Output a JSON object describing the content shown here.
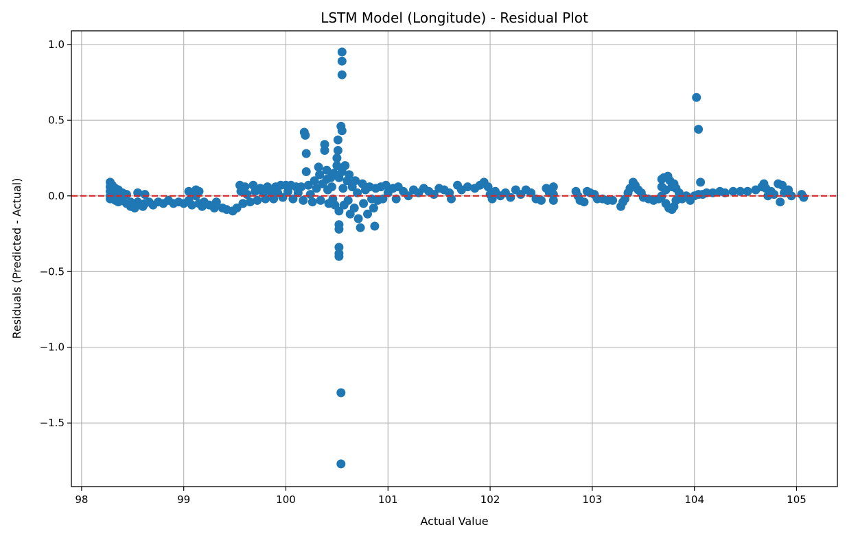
{
  "chart_data": {
    "type": "scatter",
    "title": "LSTM Model (Longitude) - Residual Plot",
    "xlabel": "Actual Value",
    "ylabel": "Residuals (Predicted - Actual)",
    "xlim": [
      97.9,
      105.4
    ],
    "ylim": [
      -1.92,
      1.09
    ],
    "xticks": [
      98,
      99,
      100,
      101,
      102,
      103,
      104,
      105
    ],
    "xtick_labels": [
      "98",
      "99",
      "100",
      "101",
      "102",
      "103",
      "104",
      "105"
    ],
    "yticks": [
      1.0,
      0.5,
      0.0,
      -0.5,
      -1.0,
      -1.5
    ],
    "ytick_labels": [
      "1.0",
      "0.5",
      "0.0",
      "−0.5",
      "−1.0",
      "−1.5"
    ],
    "grid": true,
    "reference_line": {
      "y": 0,
      "color": "#d62728",
      "style": "dashed"
    },
    "marker_color": "#1f77b4",
    "series": [
      {
        "name": "",
        "points": [
          [
            98.28,
            0.09
          ],
          [
            98.28,
            0.06
          ],
          [
            98.28,
            0.03
          ],
          [
            98.28,
            0.0
          ],
          [
            98.28,
            -0.02
          ],
          [
            98.3,
            0.07
          ],
          [
            98.3,
            0.02
          ],
          [
            98.3,
            -0.01
          ],
          [
            98.33,
            0.05
          ],
          [
            98.33,
            0.01
          ],
          [
            98.33,
            -0.03
          ],
          [
            98.36,
            0.04
          ],
          [
            98.36,
            0.0
          ],
          [
            98.36,
            -0.04
          ],
          [
            98.4,
            0.02
          ],
          [
            98.4,
            -0.03
          ],
          [
            98.44,
            0.01
          ],
          [
            98.44,
            -0.05
          ],
          [
            98.48,
            -0.04
          ],
          [
            98.48,
            -0.07
          ],
          [
            98.52,
            -0.06
          ],
          [
            98.52,
            -0.08
          ],
          [
            98.55,
            0.02
          ],
          [
            98.55,
            -0.04
          ],
          [
            98.6,
            -0.07
          ],
          [
            98.62,
            0.01
          ],
          [
            98.62,
            -0.05
          ],
          [
            98.66,
            -0.04
          ],
          [
            98.7,
            -0.06
          ],
          [
            98.75,
            -0.04
          ],
          [
            98.8,
            -0.05
          ],
          [
            98.85,
            -0.03
          ],
          [
            98.9,
            -0.05
          ],
          [
            98.95,
            -0.04
          ],
          [
            99.0,
            -0.05
          ],
          [
            99.05,
            0.03
          ],
          [
            99.05,
            -0.03
          ],
          [
            99.08,
            -0.06
          ],
          [
            99.12,
            0.04
          ],
          [
            99.12,
            0.0
          ],
          [
            99.15,
            0.03
          ],
          [
            99.15,
            -0.05
          ],
          [
            99.18,
            -0.07
          ],
          [
            99.2,
            -0.04
          ],
          [
            99.25,
            -0.06
          ],
          [
            99.3,
            -0.08
          ],
          [
            99.32,
            -0.04
          ],
          [
            99.38,
            -0.08
          ],
          [
            99.42,
            -0.09
          ],
          [
            99.48,
            -0.1
          ],
          [
            99.52,
            -0.08
          ],
          [
            99.55,
            0.07
          ],
          [
            99.56,
            0.03
          ],
          [
            99.58,
            -0.05
          ],
          [
            99.6,
            0.06
          ],
          [
            99.62,
            0.01
          ],
          [
            99.65,
            -0.04
          ],
          [
            99.68,
            0.07
          ],
          [
            99.7,
            0.03
          ],
          [
            99.72,
            -0.03
          ],
          [
            99.75,
            0.05
          ],
          [
            99.78,
            0.02
          ],
          [
            99.8,
            -0.02
          ],
          [
            99.82,
            0.06
          ],
          [
            99.85,
            0.03
          ],
          [
            99.88,
            -0.02
          ],
          [
            99.9,
            0.06
          ],
          [
            99.92,
            0.02
          ],
          [
            99.95,
            0.07
          ],
          [
            99.97,
            -0.01
          ],
          [
            100.0,
            0.07
          ],
          [
            100.02,
            0.03
          ],
          [
            100.05,
            0.07
          ],
          [
            100.07,
            -0.02
          ],
          [
            100.1,
            0.06
          ],
          [
            100.12,
            0.02
          ],
          [
            100.15,
            0.06
          ],
          [
            100.17,
            -0.03
          ],
          [
            100.18,
            0.42
          ],
          [
            100.19,
            0.4
          ],
          [
            100.2,
            0.28
          ],
          [
            100.2,
            0.16
          ],
          [
            100.22,
            0.07
          ],
          [
            100.24,
            0.01
          ],
          [
            100.26,
            -0.04
          ],
          [
            100.28,
            0.1
          ],
          [
            100.3,
            0.05
          ],
          [
            100.32,
            0.19
          ],
          [
            100.33,
            0.14
          ],
          [
            100.34,
            -0.03
          ],
          [
            100.36,
            0.08
          ],
          [
            100.38,
            0.34
          ],
          [
            100.38,
            0.3
          ],
          [
            100.4,
            0.17
          ],
          [
            100.4,
            0.11
          ],
          [
            100.41,
            0.04
          ],
          [
            100.42,
            -0.05
          ],
          [
            100.44,
            0.12
          ],
          [
            100.45,
            0.06
          ],
          [
            100.46,
            -0.02
          ],
          [
            100.47,
            0.15
          ],
          [
            100.48,
            -0.06
          ],
          [
            100.5,
            0.25
          ],
          [
            100.5,
            0.2
          ],
          [
            100.51,
            0.37
          ],
          [
            100.51,
            0.3
          ],
          [
            100.52,
            0.12
          ],
          [
            100.52,
            -0.1
          ],
          [
            100.52,
            -0.19
          ],
          [
            100.52,
            -0.22
          ],
          [
            100.52,
            -0.34
          ],
          [
            100.52,
            -0.38
          ],
          [
            100.52,
            -0.4
          ],
          [
            100.54,
            0.46
          ],
          [
            100.55,
            0.43
          ],
          [
            100.55,
            0.95
          ],
          [
            100.55,
            0.89
          ],
          [
            100.55,
            0.8
          ],
          [
            100.54,
            -1.3
          ],
          [
            100.54,
            -1.77
          ],
          [
            100.55,
            0.16
          ],
          [
            100.56,
            0.05
          ],
          [
            100.57,
            -0.06
          ],
          [
            100.58,
            0.2
          ],
          [
            100.6,
            0.1
          ],
          [
            100.61,
            -0.03
          ],
          [
            100.62,
            0.14
          ],
          [
            100.63,
            -0.12
          ],
          [
            100.65,
            0.06
          ],
          [
            100.67,
            -0.08
          ],
          [
            100.68,
            0.1
          ],
          [
            100.7,
            0.02
          ],
          [
            100.71,
            -0.15
          ],
          [
            100.73,
            -0.21
          ],
          [
            100.75,
            0.08
          ],
          [
            100.76,
            -0.05
          ],
          [
            100.78,
            0.04
          ],
          [
            100.8,
            -0.12
          ],
          [
            100.82,
            0.06
          ],
          [
            100.84,
            -0.02
          ],
          [
            100.86,
            -0.08
          ],
          [
            100.87,
            -0.2
          ],
          [
            100.88,
            0.05
          ],
          [
            100.9,
            -0.03
          ],
          [
            100.93,
            0.06
          ],
          [
            100.95,
            -0.02
          ],
          [
            100.98,
            0.07
          ],
          [
            101.0,
            0.02
          ],
          [
            101.05,
            0.05
          ],
          [
            101.08,
            -0.02
          ],
          [
            101.1,
            0.06
          ],
          [
            101.15,
            0.03
          ],
          [
            101.2,
            0.0
          ],
          [
            101.25,
            0.04
          ],
          [
            101.3,
            0.02
          ],
          [
            101.35,
            0.05
          ],
          [
            101.4,
            0.03
          ],
          [
            101.45,
            0.01
          ],
          [
            101.5,
            0.05
          ],
          [
            101.55,
            0.04
          ],
          [
            101.6,
            0.02
          ],
          [
            101.62,
            -0.02
          ],
          [
            101.68,
            0.07
          ],
          [
            101.72,
            0.04
          ],
          [
            101.78,
            0.06
          ],
          [
            101.85,
            0.05
          ],
          [
            101.9,
            0.07
          ],
          [
            101.94,
            0.09
          ],
          [
            101.98,
            0.06
          ],
          [
            102.0,
            0.01
          ],
          [
            102.02,
            -0.02
          ],
          [
            102.05,
            0.03
          ],
          [
            102.1,
            0.0
          ],
          [
            102.15,
            0.02
          ],
          [
            102.2,
            -0.01
          ],
          [
            102.25,
            0.04
          ],
          [
            102.3,
            0.01
          ],
          [
            102.35,
            0.04
          ],
          [
            102.4,
            0.02
          ],
          [
            102.45,
            -0.02
          ],
          [
            102.5,
            -0.03
          ],
          [
            102.55,
            0.05
          ],
          [
            102.58,
            0.02
          ],
          [
            102.62,
            0.06
          ],
          [
            102.62,
            0.01
          ],
          [
            102.62,
            -0.03
          ],
          [
            102.84,
            0.03
          ],
          [
            102.86,
            0.0
          ],
          [
            102.88,
            -0.03
          ],
          [
            102.92,
            -0.04
          ],
          [
            102.95,
            0.03
          ],
          [
            102.98,
            0.02
          ],
          [
            103.02,
            0.01
          ],
          [
            103.05,
            -0.02
          ],
          [
            103.1,
            -0.02
          ],
          [
            103.15,
            -0.03
          ],
          [
            103.2,
            -0.03
          ],
          [
            103.28,
            -0.07
          ],
          [
            103.3,
            -0.04
          ],
          [
            103.32,
            -0.02
          ],
          [
            103.35,
            0.02
          ],
          [
            103.37,
            0.05
          ],
          [
            103.4,
            0.09
          ],
          [
            103.42,
            0.07
          ],
          [
            103.45,
            0.04
          ],
          [
            103.48,
            0.02
          ],
          [
            103.5,
            -0.01
          ],
          [
            103.55,
            -0.02
          ],
          [
            103.6,
            -0.03
          ],
          [
            103.65,
            -0.02
          ],
          [
            103.68,
            0.0
          ],
          [
            103.68,
            0.06
          ],
          [
            103.68,
            0.11
          ],
          [
            103.7,
            0.12
          ],
          [
            103.72,
            0.04
          ],
          [
            103.72,
            -0.05
          ],
          [
            103.74,
            0.13
          ],
          [
            103.75,
            -0.08
          ],
          [
            103.76,
            0.1
          ],
          [
            103.78,
            0.06
          ],
          [
            103.78,
            -0.09
          ],
          [
            103.8,
            0.08
          ],
          [
            103.8,
            -0.07
          ],
          [
            103.82,
            0.05
          ],
          [
            103.82,
            -0.03
          ],
          [
            103.85,
            0.02
          ],
          [
            103.88,
            -0.02
          ],
          [
            103.92,
            0.0
          ],
          [
            103.96,
            -0.03
          ],
          [
            104.0,
            0.0
          ],
          [
            104.02,
            0.65
          ],
          [
            104.04,
            0.44
          ],
          [
            104.04,
            0.01
          ],
          [
            104.06,
            0.09
          ],
          [
            104.08,
            0.01
          ],
          [
            104.12,
            0.02
          ],
          [
            104.18,
            0.02
          ],
          [
            104.25,
            0.03
          ],
          [
            104.3,
            0.02
          ],
          [
            104.38,
            0.03
          ],
          [
            104.45,
            0.03
          ],
          [
            104.52,
            0.03
          ],
          [
            104.6,
            0.04
          ],
          [
            104.66,
            0.06
          ],
          [
            104.68,
            0.08
          ],
          [
            104.7,
            0.05
          ],
          [
            104.72,
            0.0
          ],
          [
            104.75,
            0.03
          ],
          [
            104.78,
            0.01
          ],
          [
            104.82,
            0.08
          ],
          [
            104.84,
            -0.04
          ],
          [
            104.86,
            0.07
          ],
          [
            104.88,
            0.02
          ],
          [
            104.92,
            0.04
          ],
          [
            104.95,
            0.0
          ],
          [
            105.05,
            0.01
          ],
          [
            105.07,
            -0.01
          ]
        ]
      }
    ]
  }
}
